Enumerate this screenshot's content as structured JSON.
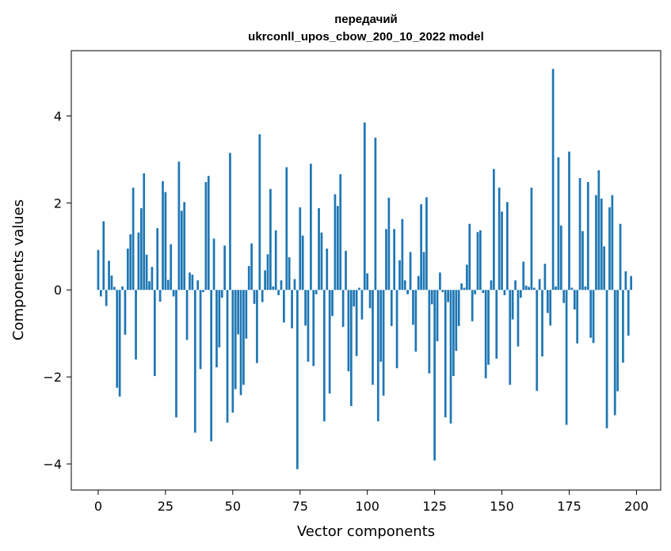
{
  "chart_data": {
    "type": "bar",
    "title_line1": "передачий",
    "title_line2": "ukrconll_upos_cbow_200_10_2022 model",
    "xlabel": "Vector components",
    "ylabel": "Components values",
    "xlim": [
      -10,
      209
    ],
    "ylim": [
      -4.6,
      5.5
    ],
    "xticks": [
      0,
      25,
      50,
      75,
      100,
      125,
      150,
      175,
      200
    ],
    "yticks": [
      -4,
      -2,
      0,
      2,
      4
    ],
    "ytick_labels": [
      "−4",
      "−2",
      "0",
      "2",
      "4"
    ],
    "bar_color": "#1f77b4",
    "grid": false,
    "values": [
      0.92,
      -0.15,
      1.58,
      -0.37,
      0.67,
      0.33,
      0.07,
      -2.25,
      -2.45,
      0.08,
      -1.03,
      0.95,
      1.28,
      2.35,
      -1.6,
      1.32,
      1.88,
      2.68,
      0.81,
      0.2,
      0.53,
      -1.98,
      1.42,
      -0.27,
      2.5,
      2.25,
      0.23,
      1.05,
      -0.15,
      -2.93,
      2.95,
      1.82,
      2.02,
      -1.15,
      0.4,
      0.35,
      -3.28,
      0.22,
      -1.82,
      -0.05,
      2.48,
      2.62,
      -3.48,
      1.18,
      -1.78,
      -1.32,
      -0.18,
      1.02,
      -3.05,
      3.15,
      -2.82,
      -2.28,
      -1.02,
      -2.42,
      -2.18,
      -1.12,
      0.55,
      1.07,
      -0.32,
      -1.68,
      3.58,
      -0.28,
      0.45,
      0.82,
      2.32,
      0.08,
      1.37,
      -0.12,
      0.22,
      -0.75,
      2.82,
      0.75,
      -0.88,
      0.25,
      -4.12,
      1.9,
      1.25,
      -0.82,
      -1.65,
      2.9,
      -1.75,
      -0.1,
      1.88,
      1.32,
      -3.02,
      0.95,
      -2.38,
      -0.6,
      2.2,
      1.93,
      2.66,
      -0.85,
      0.9,
      -1.87,
      -2.67,
      -0.38,
      -1.52,
      0.05,
      -0.68,
      3.85,
      0.38,
      -0.42,
      -2.18,
      3.5,
      -3.02,
      -1.65,
      -2.43,
      1.4,
      2.12,
      -0.83,
      1.4,
      -1.8,
      0.68,
      1.63,
      0.22,
      -0.1,
      0.87,
      -0.8,
      -1.42,
      0.32,
      1.97,
      0.87,
      2.13,
      -1.92,
      -0.33,
      -3.92,
      -1.18,
      0.4,
      -0.05,
      -2.93,
      -0.28,
      -3.07,
      -1.98,
      -1.4,
      -0.83,
      0.15,
      0.05,
      0.58,
      1.52,
      -0.72,
      -0.1,
      1.33,
      1.37,
      -0.07,
      -2.03,
      -1.72,
      0.22,
      2.78,
      -1.58,
      2.35,
      1.8,
      -0.12,
      2.02,
      -2.18,
      -0.68,
      0.22,
      -1.3,
      -0.18,
      0.65,
      0.1,
      0.07,
      2.35,
      0.05,
      -2.32,
      0.25,
      -1.53,
      0.6,
      -0.53,
      -0.82,
      5.08,
      0.08,
      3.05,
      1.48,
      -0.3,
      -3.1,
      3.18,
      0.05,
      -0.45,
      -1.23,
      2.57,
      1.35,
      0.08,
      2.48,
      -1.1,
      -1.22,
      2.18,
      2.75,
      2.1,
      1.0,
      -3.18,
      1.9,
      2.18,
      -2.88,
      -2.33,
      1.52,
      -1.67,
      0.43,
      -1.05,
      0.32
    ]
  }
}
